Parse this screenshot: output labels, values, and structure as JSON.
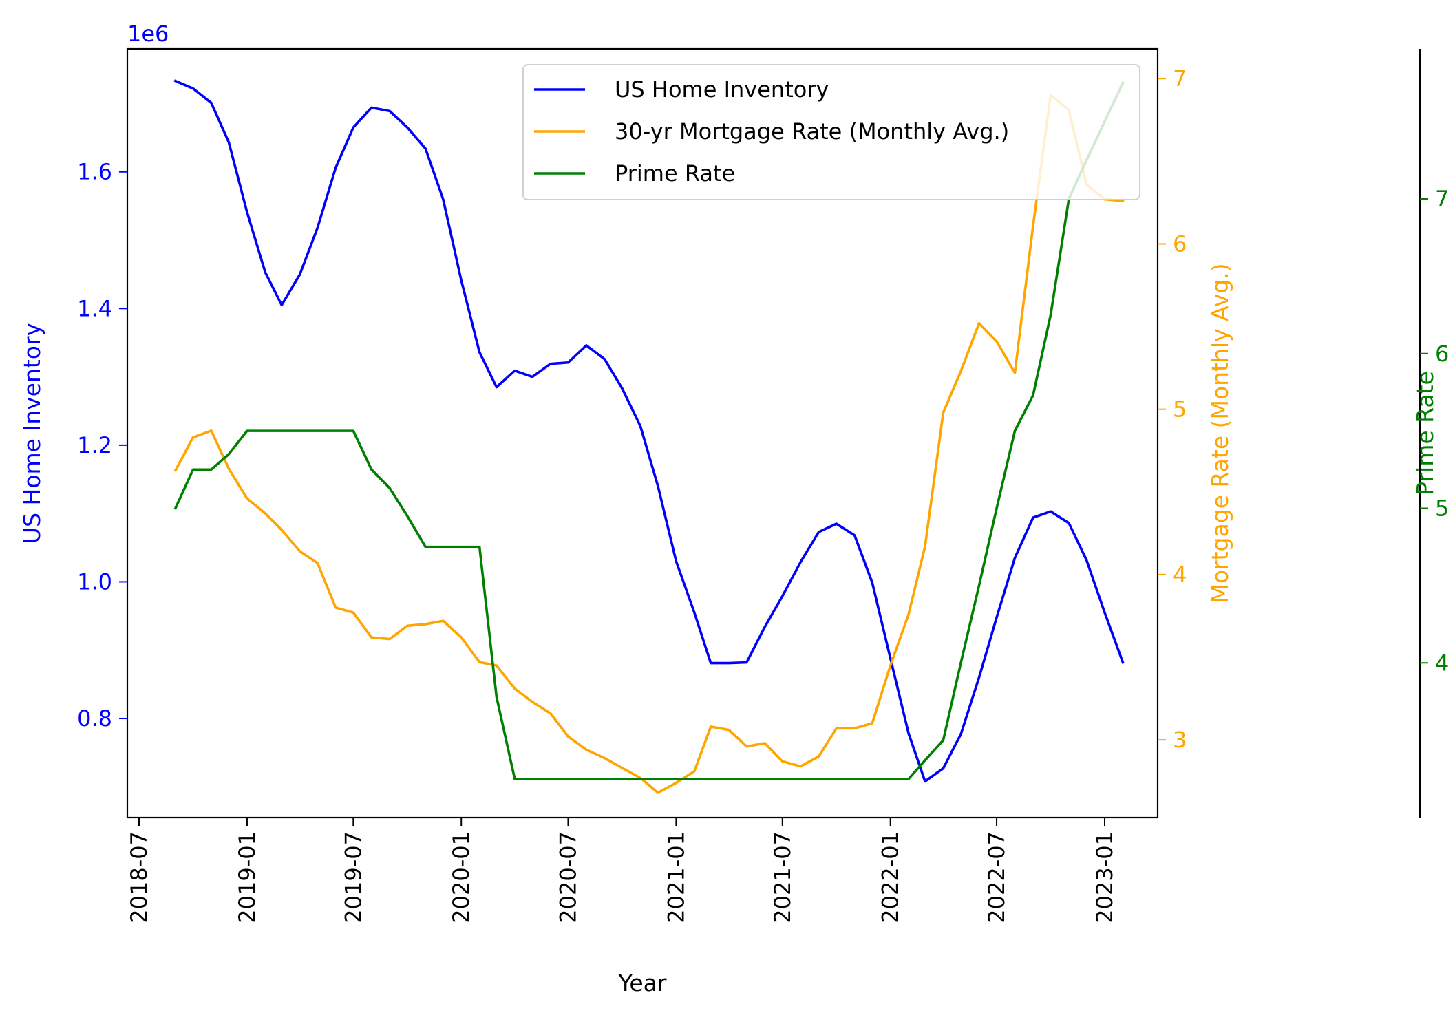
{
  "chart_data": {
    "type": "line",
    "xlabel": "Year",
    "x_ticks": [
      "2018-07",
      "2019-01",
      "2019-07",
      "2020-01",
      "2020-07",
      "2021-01",
      "2021-07",
      "2022-01",
      "2022-07",
      "2023-01"
    ],
    "x": [
      "2018-09",
      "2018-10",
      "2018-11",
      "2018-12",
      "2019-01",
      "2019-02",
      "2019-03",
      "2019-04",
      "2019-05",
      "2019-06",
      "2019-07",
      "2019-08",
      "2019-09",
      "2019-10",
      "2019-11",
      "2019-12",
      "2020-01",
      "2020-02",
      "2020-03",
      "2020-04",
      "2020-05",
      "2020-06",
      "2020-07",
      "2020-08",
      "2020-09",
      "2020-10",
      "2020-11",
      "2020-12",
      "2021-01",
      "2021-02",
      "2021-03",
      "2021-04",
      "2021-05",
      "2021-06",
      "2021-07",
      "2021-08",
      "2021-09",
      "2021-10",
      "2021-11",
      "2021-12",
      "2022-01",
      "2022-02",
      "2022-03",
      "2022-04",
      "2022-05",
      "2022-06",
      "2022-07",
      "2022-08",
      "2022-09",
      "2022-10",
      "2022-11",
      "2022-12",
      "2023-01",
      "2023-02"
    ],
    "axes": {
      "left": {
        "label": "US Home Inventory",
        "color": "#0000ff",
        "ticks": [
          "0.8",
          "1.0",
          "1.2",
          "1.4",
          "1.6"
        ],
        "tick_values": [
          0.8,
          1.0,
          1.2,
          1.4,
          1.6
        ],
        "offset_text": "1e6",
        "range": [
          0.655,
          1.78
        ]
      },
      "right1": {
        "label": "Mortgage Rate (Monthly Avg.)",
        "color": "#ffa500",
        "ticks": [
          "3",
          "4",
          "5",
          "6",
          "7"
        ],
        "tick_values": [
          3,
          4,
          5,
          6,
          7
        ],
        "range": [
          2.53,
          7.18
        ]
      },
      "right2": {
        "label": "Prime Rate",
        "color": "#008000",
        "ticks": [
          "4",
          "5",
          "6",
          "7"
        ],
        "tick_values": [
          4,
          5,
          6,
          7
        ],
        "range": [
          3.0,
          7.97
        ]
      }
    },
    "legend": {
      "position": "top-right"
    },
    "series": [
      {
        "name": "US Home Inventory",
        "color": "#0000ff",
        "axis": "left",
        "unit_scale": 1000000,
        "values": [
          1.733,
          1.722,
          1.701,
          1.643,
          1.541,
          1.453,
          1.405,
          1.45,
          1.518,
          1.606,
          1.665,
          1.694,
          1.689,
          1.665,
          1.634,
          1.56,
          1.441,
          1.336,
          1.285,
          1.309,
          1.3,
          1.319,
          1.321,
          1.346,
          1.326,
          1.283,
          1.228,
          1.14,
          1.03,
          0.955,
          0.881,
          0.881,
          0.882,
          0.934,
          0.979,
          1.029,
          1.073,
          1.085,
          1.068,
          0.999,
          0.888,
          0.778,
          0.708,
          0.727,
          0.777,
          0.86,
          0.948,
          1.035,
          1.094,
          1.103,
          1.086,
          1.032,
          0.955,
          0.882
        ]
      },
      {
        "name": "30-yr Mortgage Rate (Monthly Avg.)",
        "color": "#ffa500",
        "axis": "right1",
        "values": [
          4.63,
          4.83,
          4.87,
          4.64,
          4.46,
          4.37,
          4.27,
          4.14,
          4.07,
          3.8,
          3.77,
          3.62,
          3.61,
          3.69,
          3.7,
          3.72,
          3.62,
          3.47,
          3.45,
          3.31,
          3.23,
          3.16,
          3.02,
          2.94,
          2.89,
          2.83,
          2.77,
          2.68,
          2.74,
          2.81,
          3.08,
          3.06,
          2.96,
          2.98,
          2.87,
          2.84,
          2.9,
          3.07,
          3.07,
          3.1,
          3.45,
          3.76,
          4.17,
          4.98,
          5.23,
          5.52,
          5.41,
          5.22,
          6.11,
          6.9,
          6.81,
          6.36,
          6.27,
          6.26
        ]
      },
      {
        "name": "Prime Rate",
        "color": "#008000",
        "axis": "right2",
        "values": [
          5.0,
          5.25,
          5.25,
          5.35,
          5.5,
          5.5,
          5.5,
          5.5,
          5.5,
          5.5,
          5.5,
          5.25,
          5.13,
          4.95,
          4.75,
          4.75,
          4.75,
          4.75,
          3.78,
          3.25,
          3.25,
          3.25,
          3.25,
          3.25,
          3.25,
          3.25,
          3.25,
          3.25,
          3.25,
          3.25,
          3.25,
          3.25,
          3.25,
          3.25,
          3.25,
          3.25,
          3.25,
          3.25,
          3.25,
          3.25,
          3.25,
          3.25,
          3.37,
          3.5,
          4.0,
          4.5,
          5.0,
          5.5,
          5.73,
          6.25,
          7.0,
          7.25,
          7.5,
          7.75
        ]
      }
    ]
  }
}
